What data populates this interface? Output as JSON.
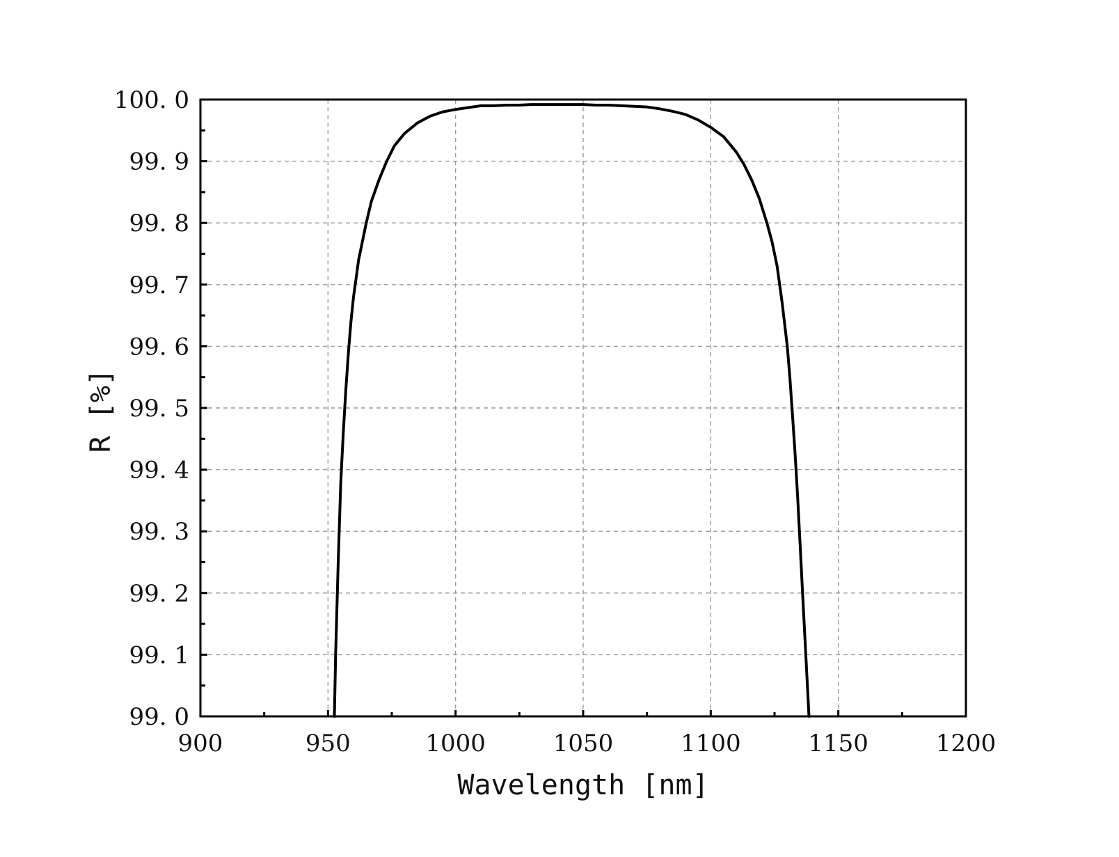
{
  "chart_data": {
    "type": "line",
    "title": "",
    "xlabel": "Wavelength [nm]",
    "ylabel": "R [%]",
    "xlim": [
      900,
      1200
    ],
    "ylim": [
      99.0,
      100.0
    ],
    "x_ticks": [
      900,
      950,
      1000,
      1050,
      1100,
      1150,
      1200
    ],
    "x_tick_labels": [
      "900",
      "950",
      "1000",
      "1050",
      "1100",
      "1150",
      "1200"
    ],
    "y_ticks": [
      99.0,
      99.1,
      99.2,
      99.3,
      99.4,
      99.5,
      99.6,
      99.7,
      99.8,
      99.9,
      100.0
    ],
    "y_tick_labels": [
      "99. 0",
      "99. 1",
      "99. 2",
      "99. 3",
      "99. 4",
      "99. 5",
      "99. 6",
      "99. 7",
      "99. 8",
      "99. 9",
      "100. 0"
    ],
    "grid": true,
    "legend": "none",
    "series": [
      {
        "x": [
          952.5,
          953,
          954,
          955,
          956,
          957,
          958,
          959,
          960,
          961,
          962,
          963,
          965,
          967,
          970,
          973,
          976,
          980,
          985,
          990,
          995,
          1000,
          1005,
          1010,
          1015,
          1020,
          1025,
          1030,
          1035,
          1040,
          1045,
          1050,
          1055,
          1060,
          1065,
          1070,
          1075,
          1080,
          1085,
          1090,
          1095,
          1100,
          1105,
          1110,
          1113,
          1116,
          1119,
          1122,
          1124,
          1126,
          1128,
          1130,
          1131,
          1132,
          1133,
          1134,
          1135,
          1136,
          1137,
          1138,
          1138.5
        ],
        "y": [
          99.0,
          99.1,
          99.25,
          99.38,
          99.46,
          99.53,
          99.59,
          99.64,
          99.68,
          99.71,
          99.74,
          99.76,
          99.8,
          99.835,
          99.87,
          99.9,
          99.925,
          99.945,
          99.962,
          99.973,
          99.98,
          99.984,
          99.987,
          99.99,
          99.99,
          99.991,
          99.991,
          99.992,
          99.992,
          99.992,
          99.992,
          99.992,
          99.991,
          99.991,
          99.99,
          99.989,
          99.988,
          99.985,
          99.981,
          99.976,
          99.967,
          99.955,
          99.94,
          99.915,
          99.895,
          99.87,
          99.84,
          99.8,
          99.77,
          99.73,
          99.67,
          99.6,
          99.55,
          99.49,
          99.43,
          99.36,
          99.28,
          99.2,
          99.12,
          99.04,
          99.0
        ]
      }
    ]
  }
}
